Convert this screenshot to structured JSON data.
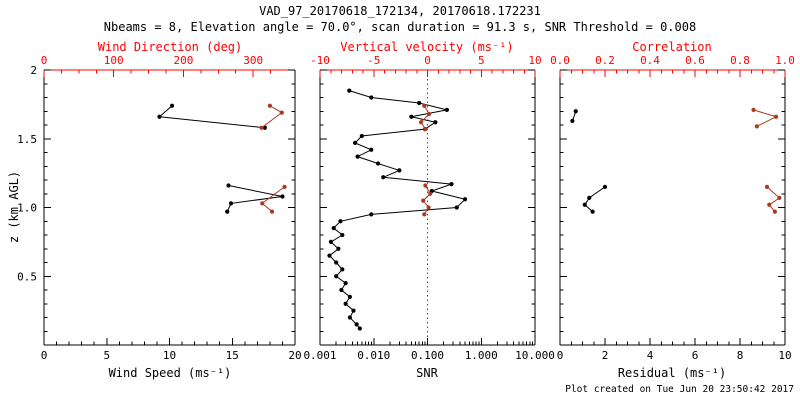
{
  "title": "VAD_97_20170618_172134, 20170618.172231",
  "subtitle": "Nbeams = 8, Elevation angle = 70.0°, scan duration = 91.3 s, SNR Threshold = 0.008",
  "footer": "Plot created on Tue Jun 20 23:50:42 2017",
  "colors": {
    "axis_red": "#ff0000",
    "data_red": "#a83a22",
    "data_black": "#000000"
  },
  "chart_data": [
    {
      "type": "line",
      "name": "wind-panel",
      "xlabel": "Wind Speed (ms⁻¹)",
      "x2label": "Wind Direction (deg)",
      "ylabel": "z (km AGL)",
      "xlim": [
        0,
        20
      ],
      "xticks": [
        0,
        5,
        10,
        15,
        20
      ],
      "xtick_labels": [
        "0",
        "5",
        "10",
        "15",
        "20"
      ],
      "xminor": 5,
      "x2lim": [
        0,
        360
      ],
      "x2ticks": [
        0,
        100,
        200,
        300
      ],
      "x2tick_labels": [
        "0",
        "100",
        "200",
        "300"
      ],
      "x2minor": 4,
      "ylim": [
        0,
        2
      ],
      "yticks": [
        0.5,
        1.0,
        1.5,
        2.0
      ],
      "ytick_labels": [
        "0.5",
        "1.0",
        "1.5",
        "2"
      ],
      "yminor": 5,
      "show_ylabels": true,
      "series": [
        {
          "name": "wind-speed",
          "axis": "x",
          "color": "#000000",
          "segments": [
            [
              [
                10.2,
                1.74
              ],
              [
                9.2,
                1.66
              ],
              [
                17.6,
                1.58
              ]
            ],
            [
              [
                14.7,
                1.16
              ],
              [
                19.0,
                1.08
              ],
              [
                14.9,
                1.03
              ],
              [
                14.6,
                0.97
              ]
            ]
          ]
        },
        {
          "name": "wind-direction",
          "axis": "x2",
          "color": "#a83a22",
          "segments": [
            [
              [
                324,
                1.74
              ],
              [
                341,
                1.69
              ],
              [
                312,
                1.58
              ]
            ],
            [
              [
                345,
                1.15
              ],
              [
                313,
                1.03
              ],
              [
                327,
                0.97
              ]
            ]
          ]
        }
      ]
    },
    {
      "type": "line",
      "name": "snr-panel",
      "xlabel": "SNR",
      "x2label": "Vertical velocity (ms⁻¹)",
      "xscale": "log",
      "xlim": [
        0.001,
        10
      ],
      "xticks": [
        0.001,
        0.01,
        0.1,
        1,
        10
      ],
      "xtick_labels": [
        "0.001",
        "0.010",
        "0.100",
        "1.000",
        "10.000"
      ],
      "x2lim": [
        -10,
        10
      ],
      "x2ticks": [
        -10,
        -5,
        0,
        5,
        10
      ],
      "x2tick_labels": [
        "-10",
        "-5",
        "0",
        "5",
        "10"
      ],
      "x2minor": 5,
      "ylim": [
        0,
        2
      ],
      "yticks": [
        0.5,
        1.0,
        1.5,
        2.0
      ],
      "yminor": 5,
      "show_ylabels": false,
      "refline_x2": 0,
      "series": [
        {
          "name": "snr",
          "axis": "x",
          "color": "#000000",
          "segments": [
            [
              [
                0.0035,
                1.85
              ],
              [
                0.009,
                1.8
              ],
              [
                0.07,
                1.76
              ],
              [
                0.23,
                1.71
              ],
              [
                0.05,
                1.66
              ],
              [
                0.14,
                1.62
              ],
              [
                0.09,
                1.57
              ],
              [
                0.006,
                1.52
              ],
              [
                0.0045,
                1.47
              ],
              [
                0.009,
                1.42
              ],
              [
                0.005,
                1.37
              ],
              [
                0.012,
                1.32
              ],
              [
                0.03,
                1.27
              ],
              [
                0.015,
                1.22
              ],
              [
                0.28,
                1.17
              ],
              [
                0.12,
                1.12
              ],
              [
                0.5,
                1.06
              ],
              [
                0.35,
                1.0
              ],
              [
                0.009,
                0.95
              ],
              [
                0.0024,
                0.9
              ],
              [
                0.0018,
                0.85
              ],
              [
                0.0026,
                0.8
              ],
              [
                0.0016,
                0.75
              ],
              [
                0.0022,
                0.7
              ],
              [
                0.0015,
                0.65
              ],
              [
                0.002,
                0.6
              ],
              [
                0.0026,
                0.55
              ],
              [
                0.002,
                0.5
              ],
              [
                0.003,
                0.45
              ],
              [
                0.0025,
                0.4
              ],
              [
                0.0036,
                0.35
              ],
              [
                0.003,
                0.3
              ],
              [
                0.0042,
                0.25
              ],
              [
                0.0036,
                0.2
              ],
              [
                0.0048,
                0.15
              ],
              [
                0.0055,
                0.12
              ]
            ]
          ]
        },
        {
          "name": "vertical-velocity",
          "axis": "x2",
          "color": "#a83a22",
          "segments": [
            [
              [
                -0.3,
                1.74
              ],
              [
                0.15,
                1.68
              ],
              [
                -0.6,
                1.62
              ],
              [
                -0.2,
                1.57
              ]
            ],
            [
              [
                -0.2,
                1.16
              ],
              [
                0.25,
                1.1
              ],
              [
                -0.4,
                1.05
              ],
              [
                0.1,
                1.0
              ],
              [
                -0.3,
                0.95
              ]
            ]
          ]
        }
      ]
    },
    {
      "type": "line",
      "name": "residual-panel",
      "xlabel": "Residual (ms⁻¹)",
      "x2label": "Correlation",
      "xlim": [
        0,
        10
      ],
      "xticks": [
        0,
        2,
        4,
        6,
        8,
        10
      ],
      "xtick_labels": [
        "0",
        "2",
        "4",
        "6",
        "8",
        "10"
      ],
      "xminor": 4,
      "x2lim": [
        0,
        1
      ],
      "x2ticks": [
        0,
        0.2,
        0.4,
        0.6,
        0.8,
        1.0
      ],
      "x2tick_labels": [
        "0.0",
        "0.2",
        "0.4",
        "0.6",
        "0.8",
        "1.0"
      ],
      "x2minor": 4,
      "ylim": [
        0,
        2
      ],
      "yticks": [
        0.5,
        1.0,
        1.5,
        2.0
      ],
      "yminor": 5,
      "show_ylabels": false,
      "series": [
        {
          "name": "residual",
          "axis": "x",
          "color": "#000000",
          "segments": [
            [
              [
                0.7,
                1.7
              ],
              [
                0.55,
                1.63
              ]
            ],
            [
              [
                2.0,
                1.15
              ],
              [
                1.3,
                1.07
              ],
              [
                1.1,
                1.02
              ],
              [
                1.45,
                0.97
              ]
            ]
          ]
        },
        {
          "name": "correlation",
          "axis": "x2",
          "color": "#a83a22",
          "segments": [
            [
              [
                0.86,
                1.71
              ],
              [
                0.96,
                1.66
              ],
              [
                0.875,
                1.59
              ]
            ],
            [
              [
                0.92,
                1.15
              ],
              [
                0.975,
                1.07
              ],
              [
                0.93,
                1.02
              ],
              [
                0.955,
                0.97
              ]
            ]
          ]
        }
      ]
    }
  ]
}
